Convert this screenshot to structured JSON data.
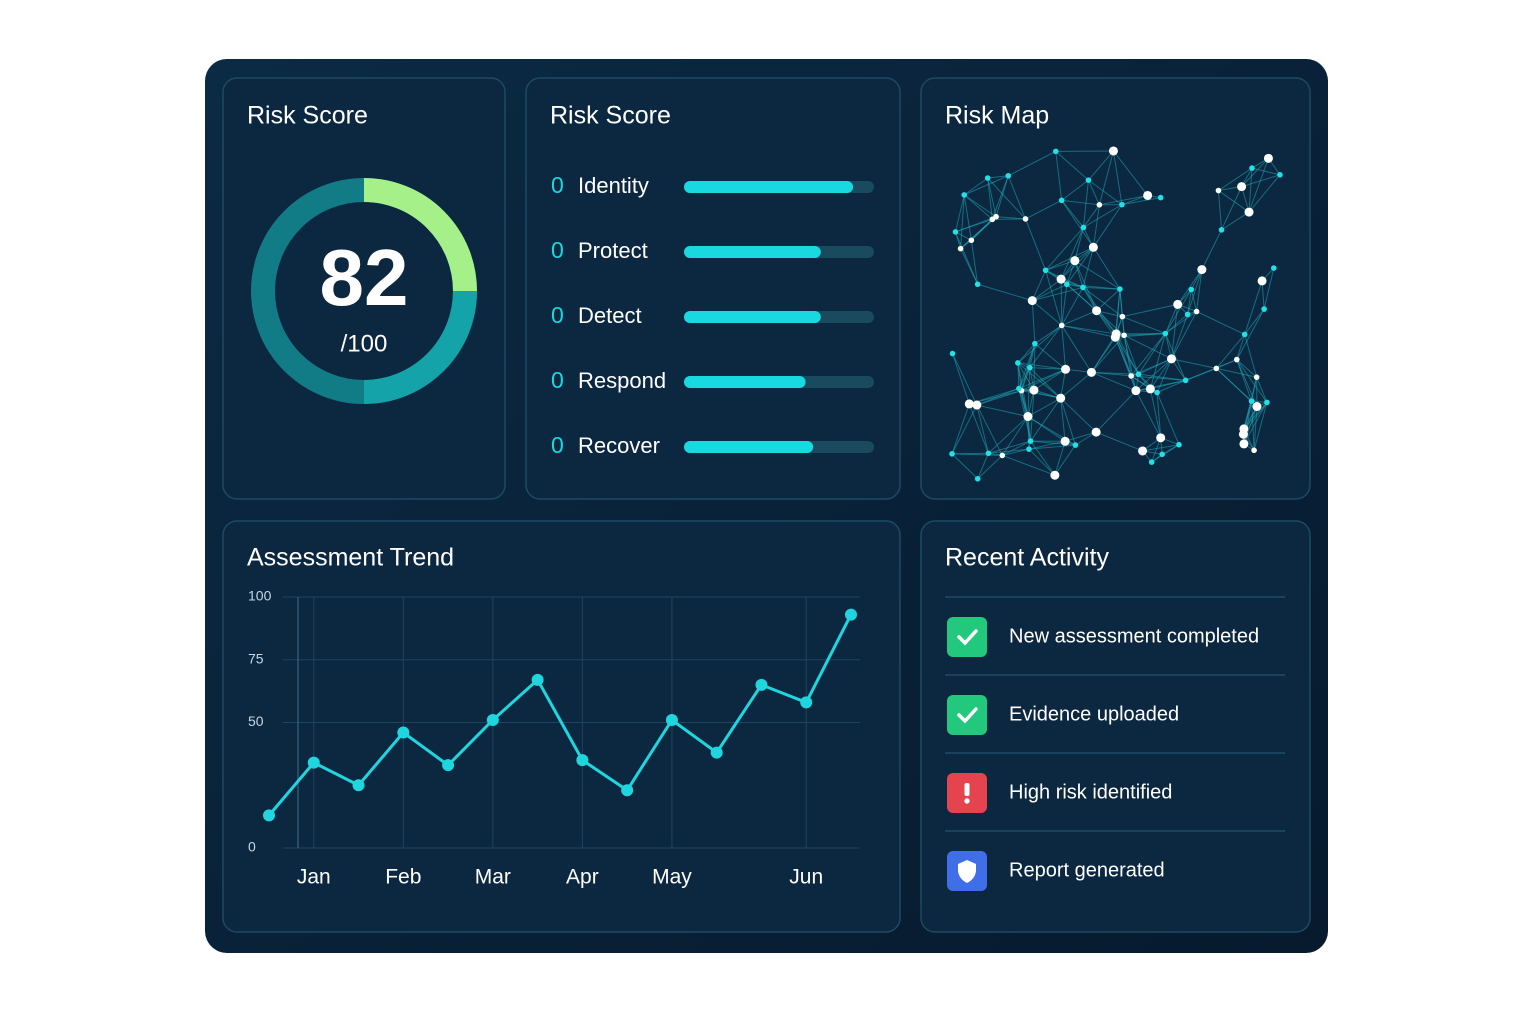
{
  "score_card": {
    "title": "Risk Score",
    "score": 82,
    "scale_label": "/100"
  },
  "risk_bars": {
    "type": "bar",
    "title": "Risk Score",
    "xlim": [
      0,
      100
    ],
    "color": "#19d9e0",
    "items": [
      {
        "score": 0,
        "label": "Identity",
        "value": 89
      },
      {
        "score": 0,
        "label": "Protect",
        "value": 72
      },
      {
        "score": 0,
        "label": "Detect",
        "value": 72
      },
      {
        "score": 0,
        "label": "Respond",
        "value": 64
      },
      {
        "score": 0,
        "label": "Recover",
        "value": 68
      }
    ]
  },
  "risk_map": {
    "title": "Risk Map"
  },
  "chart_data": {
    "type": "line",
    "title": "Assessment Trend",
    "categories": [
      null,
      "Jan",
      null,
      "Feb",
      null,
      "Mar",
      null,
      "Apr",
      null,
      "May",
      null,
      null,
      "Jun",
      null
    ],
    "series": [
      {
        "color": "#1fd6df",
        "values": [
          13,
          34,
          25,
          46,
          33,
          51,
          67,
          35,
          23,
          51,
          38,
          65,
          58,
          93
        ]
      }
    ],
    "ylim": [
      0,
      100
    ],
    "yticks": [
      0,
      50,
      75,
      100
    ],
    "grid": true
  },
  "activity": {
    "title": "Recent Activity",
    "items": [
      {
        "text": "New assessment completed",
        "icon_color": "#22c97c"
      },
      {
        "text": "Evidence uploaded",
        "icon_color": "#22c97c"
      },
      {
        "text": "High risk identified",
        "icon_color": "#e5434d"
      },
      {
        "text": "Report generated",
        "icon_color": "#3f6ee8"
      }
    ]
  }
}
